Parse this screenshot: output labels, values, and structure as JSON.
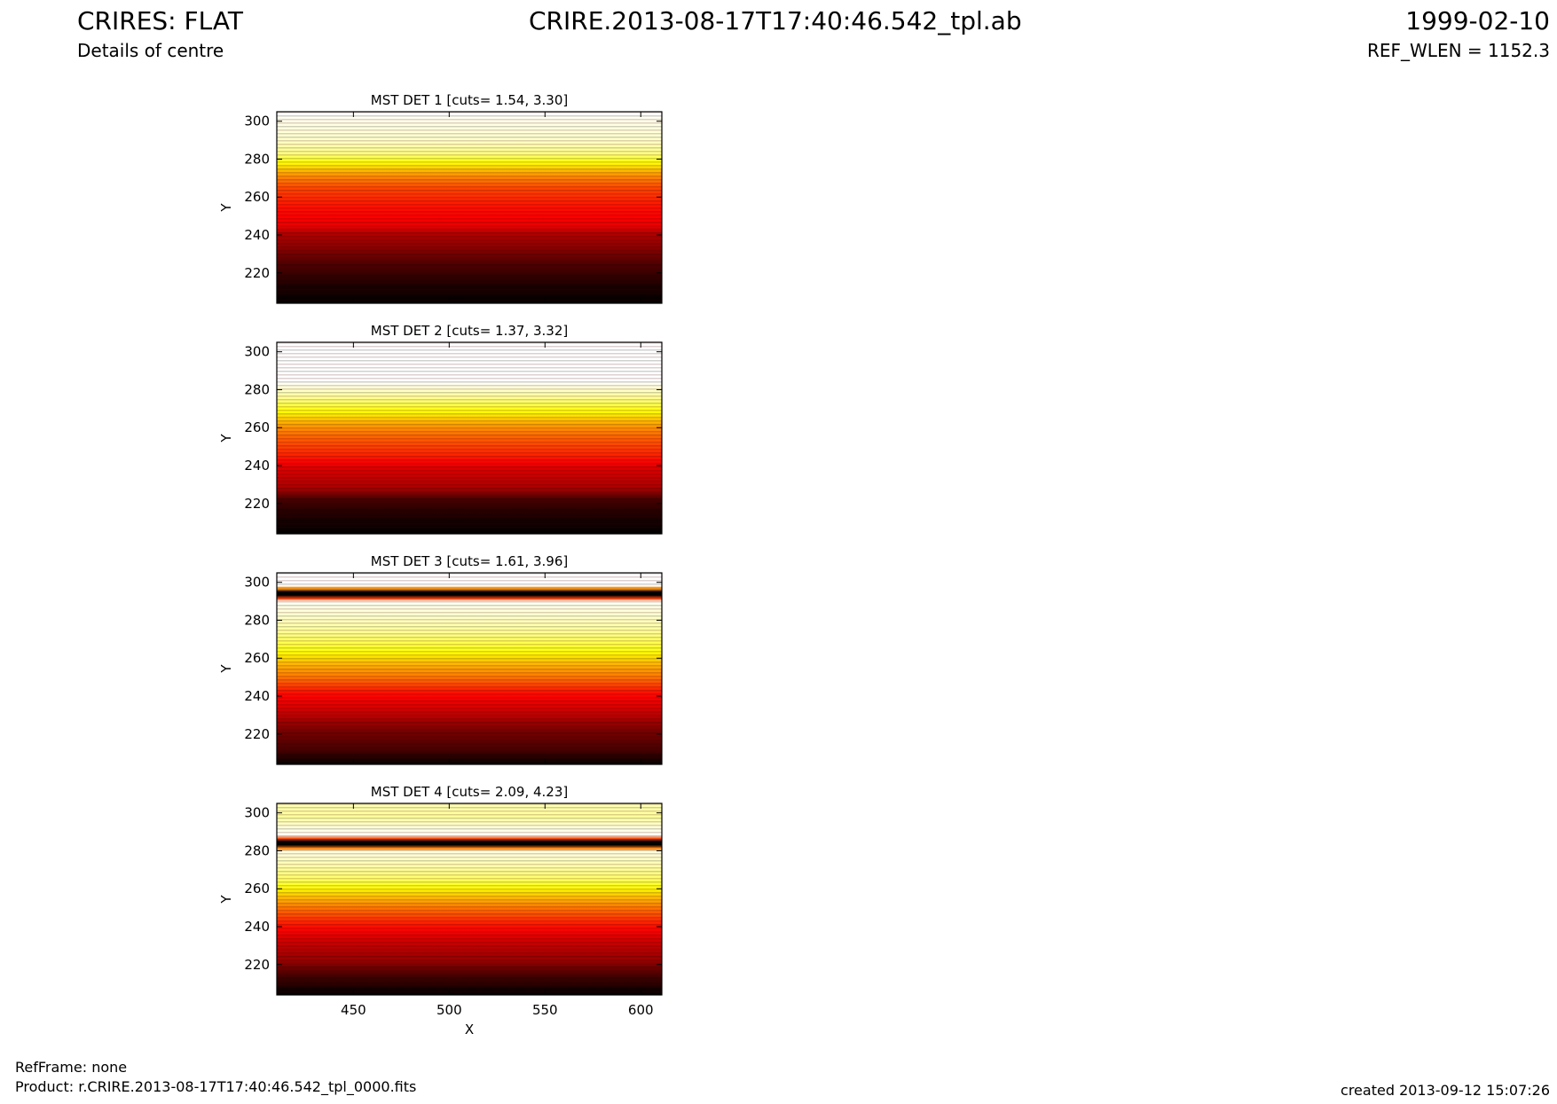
{
  "header": {
    "title_left": "CRIRES: FLAT",
    "subtitle": "Details of centre",
    "title_center": "CRIRE.2013-08-17T17:40:46.542_tpl.ab",
    "title_right": "1999-02-10",
    "ref_wlen": "REF_WLEN = 1152.3"
  },
  "footer": {
    "refframe": "RefFrame: none",
    "product": "Product: r.CRIRE.2013-08-17T17:40:46.542_tpl_0000.fits",
    "created": "created 2013-09-12 15:07:26"
  },
  "chart_data": [
    {
      "type": "heatmap",
      "title": "MST DET 1 [cuts= 1.54, 3.30]",
      "xlabel": "",
      "ylabel": "Y",
      "xlim": [
        410,
        611
      ],
      "ylim": [
        204,
        305
      ],
      "xticks": [],
      "yticks": [
        220,
        240,
        260,
        280,
        300
      ],
      "colormap": "hot",
      "intensity_profile": [
        {
          "y": 204,
          "level": 0.0
        },
        {
          "y": 215,
          "level": 0.05
        },
        {
          "y": 225,
          "level": 0.12
        },
        {
          "y": 235,
          "level": 0.22
        },
        {
          "y": 240,
          "level": 0.25
        },
        {
          "y": 245,
          "level": 0.35
        },
        {
          "y": 255,
          "level": 0.4
        },
        {
          "y": 265,
          "level": 0.48
        },
        {
          "y": 272,
          "level": 0.6
        },
        {
          "y": 278,
          "level": 0.75
        },
        {
          "y": 283,
          "level": 0.88
        },
        {
          "y": 290,
          "level": 0.95
        },
        {
          "y": 300,
          "level": 0.98
        },
        {
          "y": 305,
          "level": 1.0
        }
      ]
    },
    {
      "type": "heatmap",
      "title": "MST DET 2 [cuts= 1.37, 3.32]",
      "xlabel": "",
      "ylabel": "Y",
      "xlim": [
        410,
        611
      ],
      "ylim": [
        204,
        305
      ],
      "xticks": [],
      "yticks": [
        220,
        240,
        260,
        280,
        300
      ],
      "colormap": "hot",
      "intensity_profile": [
        {
          "y": 204,
          "level": 0.0
        },
        {
          "y": 215,
          "level": 0.05
        },
        {
          "y": 222,
          "level": 0.1
        },
        {
          "y": 228,
          "level": 0.25
        },
        {
          "y": 238,
          "level": 0.32
        },
        {
          "y": 245,
          "level": 0.42
        },
        {
          "y": 255,
          "level": 0.52
        },
        {
          "y": 262,
          "level": 0.62
        },
        {
          "y": 270,
          "level": 0.78
        },
        {
          "y": 276,
          "level": 0.9
        },
        {
          "y": 281,
          "level": 0.96
        },
        {
          "y": 284,
          "level": 1.0
        },
        {
          "y": 305,
          "level": 1.0
        }
      ]
    },
    {
      "type": "heatmap",
      "title": "MST DET 3 [cuts= 1.61, 3.96]",
      "xlabel": "",
      "ylabel": "Y",
      "xlim": [
        410,
        611
      ],
      "ylim": [
        204,
        305
      ],
      "xticks": [],
      "yticks": [
        220,
        240,
        260,
        280,
        300
      ],
      "colormap": "hot",
      "intensity_profile": [
        {
          "y": 204,
          "level": 0.0
        },
        {
          "y": 211,
          "level": 0.1
        },
        {
          "y": 222,
          "level": 0.18
        },
        {
          "y": 232,
          "level": 0.3
        },
        {
          "y": 242,
          "level": 0.4
        },
        {
          "y": 250,
          "level": 0.55
        },
        {
          "y": 258,
          "level": 0.66
        },
        {
          "y": 266,
          "level": 0.8
        },
        {
          "y": 274,
          "level": 0.9
        },
        {
          "y": 282,
          "level": 0.95
        },
        {
          "y": 288,
          "level": 0.98
        },
        {
          "y": 291,
          "level": 1.0
        },
        {
          "y": 292,
          "level": 0.0
        },
        {
          "y": 296,
          "level": 0.0
        },
        {
          "y": 297,
          "level": 1.0
        },
        {
          "y": 305,
          "level": 1.0
        }
      ]
    },
    {
      "type": "heatmap",
      "title": "MST DET 4 [cuts= 2.09, 4.23]",
      "xlabel": "X",
      "ylabel": "Y",
      "xlim": [
        410,
        611
      ],
      "ylim": [
        204,
        305
      ],
      "xticks": [
        450,
        500,
        550,
        600
      ],
      "yticks": [
        220,
        240,
        260,
        280,
        300
      ],
      "colormap": "hot",
      "intensity_profile": [
        {
          "y": 204,
          "level": 0.0
        },
        {
          "y": 214,
          "level": 0.1
        },
        {
          "y": 222,
          "level": 0.22
        },
        {
          "y": 232,
          "level": 0.3
        },
        {
          "y": 242,
          "level": 0.42
        },
        {
          "y": 250,
          "level": 0.55
        },
        {
          "y": 258,
          "level": 0.7
        },
        {
          "y": 265,
          "level": 0.85
        },
        {
          "y": 272,
          "level": 0.92
        },
        {
          "y": 281,
          "level": 0.98
        },
        {
          "y": 282,
          "level": 0.0
        },
        {
          "y": 286,
          "level": 0.0
        },
        {
          "y": 287,
          "level": 1.0
        },
        {
          "y": 292,
          "level": 0.97
        },
        {
          "y": 298,
          "level": 0.9
        },
        {
          "y": 305,
          "level": 0.93
        }
      ]
    }
  ]
}
